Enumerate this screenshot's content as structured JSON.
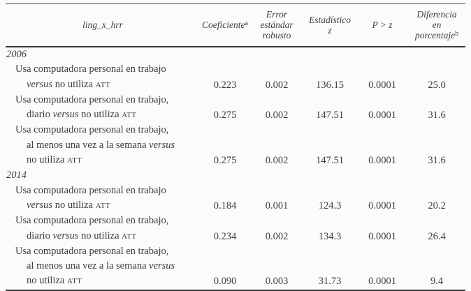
{
  "colors": {
    "background": "#fbfbfb",
    "text": "#3e3e3e",
    "rule": "#3a3a3a"
  },
  "table": {
    "header": {
      "variable": "ling_x_hrr",
      "coef": "Coeficiente",
      "coef_sup": "a",
      "error_lines": [
        "Error",
        "estándar",
        "robusto"
      ],
      "stat_lines": [
        "Estadístico",
        "z"
      ],
      "p": "P > z",
      "dif_lines": [
        "Diferencia",
        "en",
        "porcentaje"
      ],
      "dif_sup": "b"
    },
    "sections": [
      {
        "year": "2006",
        "rows": [
          {
            "label_lines": [
              [
                {
                  "t": "Usa computadora personal en trabajo",
                  "s": "n"
                }
              ],
              [
                {
                  "t": "versus",
                  "s": "i"
                },
                {
                  "t": " no utiliza ",
                  "s": "n"
                },
                {
                  "t": "ATT",
                  "s": "sc"
                }
              ]
            ],
            "coef": "0.223",
            "error": "0.002",
            "stat": "136.15",
            "p": "0.0001",
            "dif": "25.0"
          },
          {
            "label_lines": [
              [
                {
                  "t": "Usa computadora personal en trabajo,",
                  "s": "n"
                }
              ],
              [
                {
                  "t": "diario ",
                  "s": "n"
                },
                {
                  "t": "versus",
                  "s": "i"
                },
                {
                  "t": " no utiliza ",
                  "s": "n"
                },
                {
                  "t": "ATT",
                  "s": "sc"
                }
              ]
            ],
            "coef": "0.275",
            "error": "0.002",
            "stat": "147.51",
            "p": "0.0001",
            "dif": "31.6"
          },
          {
            "label_lines": [
              [
                {
                  "t": "Usa computadora personal en trabajo,",
                  "s": "n"
                }
              ],
              [
                {
                  "t": "al menos una vez a la semana ",
                  "s": "n"
                },
                {
                  "t": "versus",
                  "s": "i"
                }
              ],
              [
                {
                  "t": "no utiliza ",
                  "s": "n"
                },
                {
                  "t": "ATT",
                  "s": "sc"
                }
              ]
            ],
            "coef": "0.275",
            "error": "0.002",
            "stat": "147.51",
            "p": "0.0001",
            "dif": "31.6"
          }
        ]
      },
      {
        "year": "2014",
        "rows": [
          {
            "label_lines": [
              [
                {
                  "t": "Usa computadora personal en trabajo",
                  "s": "n"
                }
              ],
              [
                {
                  "t": "versus",
                  "s": "i"
                },
                {
                  "t": " no utiliza ",
                  "s": "n"
                },
                {
                  "t": "ATT",
                  "s": "sc"
                }
              ]
            ],
            "coef": "0.184",
            "error": "0.001",
            "stat": "124.3",
            "p": "0.0001",
            "dif": "20.2"
          },
          {
            "label_lines": [
              [
                {
                  "t": "Usa computadora personal en trabajo,",
                  "s": "n"
                }
              ],
              [
                {
                  "t": "diario ",
                  "s": "n"
                },
                {
                  "t": "versus",
                  "s": "i"
                },
                {
                  "t": " no utiliza ",
                  "s": "n"
                },
                {
                  "t": "ATT",
                  "s": "sc"
                }
              ]
            ],
            "coef": "0.234",
            "error": "0.002",
            "stat": "134.3",
            "p": "0.0001",
            "dif": "26.4"
          },
          {
            "label_lines": [
              [
                {
                  "t": "Usa computadora personal en trabajo,",
                  "s": "n"
                }
              ],
              [
                {
                  "t": "al menos una vez a la semana ",
                  "s": "n"
                },
                {
                  "t": "versus",
                  "s": "i"
                }
              ],
              [
                {
                  "t": "no utiliza ",
                  "s": "n"
                },
                {
                  "t": "ATT",
                  "s": "sc"
                }
              ]
            ],
            "coef": "0.090",
            "error": "0.003",
            "stat": "31.73",
            "p": "0.0001",
            "dif": "9.4"
          }
        ]
      }
    ]
  }
}
